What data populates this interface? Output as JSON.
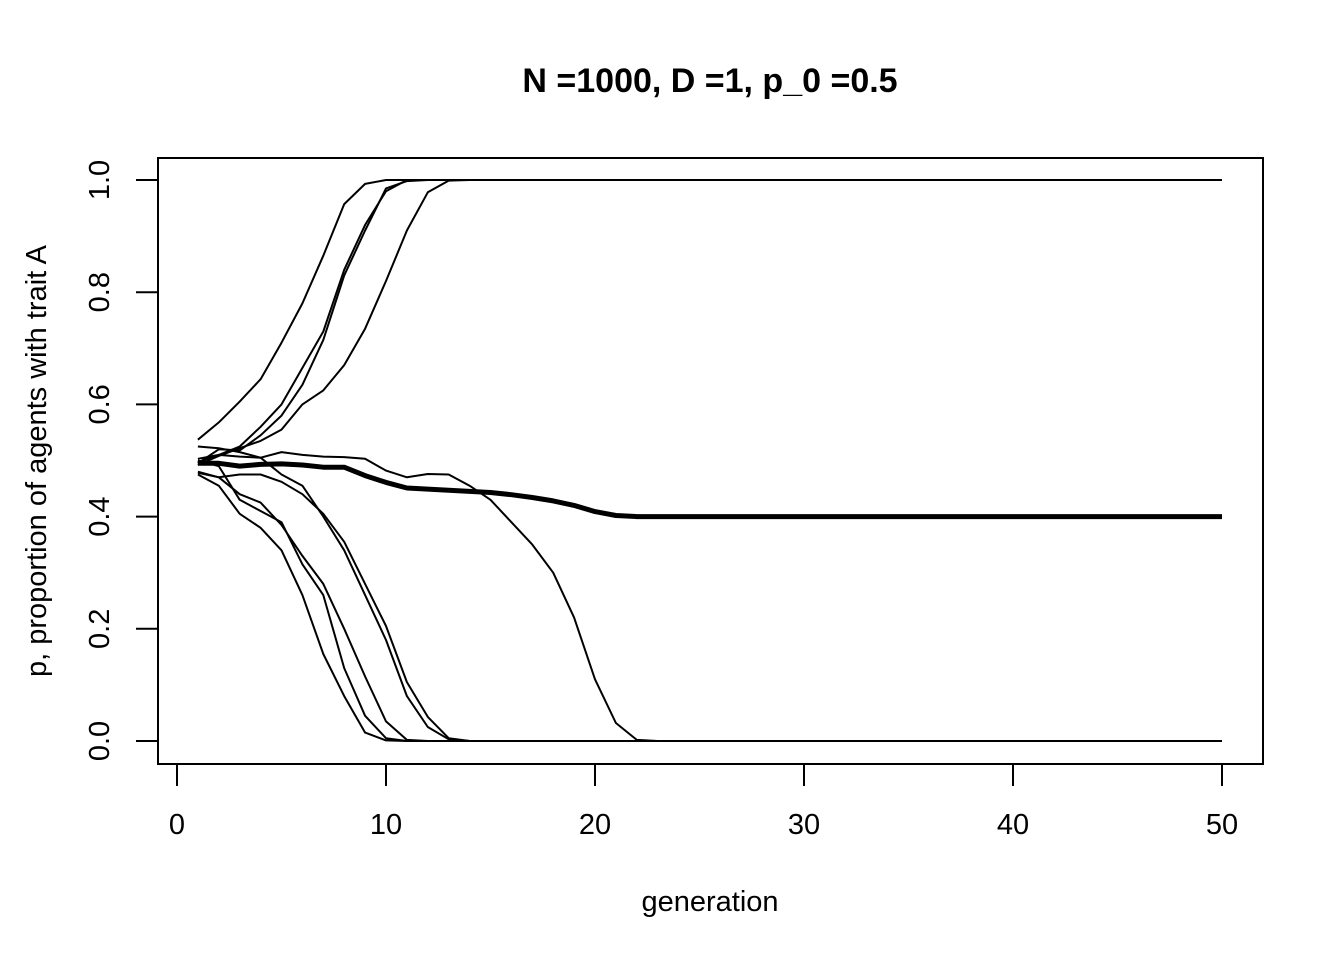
{
  "chart_data": {
    "type": "line",
    "title": "N =1000, D =1, p_0 =0.5",
    "xlabel": "generation",
    "ylabel": "p, proportion of agents with trait A",
    "xlim": [
      0,
      50
    ],
    "ylim": [
      0,
      1
    ],
    "x_ticks": [
      "0",
      "10",
      "20",
      "30",
      "40",
      "50"
    ],
    "y_ticks": [
      "0.0",
      "0.2",
      "0.4",
      "0.6",
      "0.8",
      "1.0"
    ],
    "grid": false,
    "line_color": "#000000",
    "x": [
      1,
      2,
      3,
      4,
      5,
      6,
      7,
      8,
      9,
      10,
      11,
      12,
      13,
      14,
      15,
      16,
      17,
      18,
      19,
      20,
      21,
      22,
      23,
      24,
      25,
      26,
      27,
      28,
      29,
      30,
      31,
      32,
      33,
      34,
      35,
      36,
      37,
      38,
      39,
      40,
      41,
      42,
      43,
      44,
      45,
      46,
      47,
      48,
      49,
      50
    ],
    "runs": [
      [
        0.537,
        0.568,
        0.605,
        0.645,
        0.71,
        0.78,
        0.865,
        0.957,
        0.993,
        1.0,
        1.0,
        1.0,
        1.0,
        1.0,
        1.0,
        1.0,
        1.0,
        1.0,
        1.0,
        1.0,
        1.0,
        1.0,
        1.0,
        1.0,
        1.0,
        1.0,
        1.0,
        1.0,
        1.0,
        1.0,
        1.0,
        1.0,
        1.0,
        1.0,
        1.0,
        1.0,
        1.0,
        1.0,
        1.0,
        1.0,
        1.0,
        1.0,
        1.0,
        1.0,
        1.0,
        1.0,
        1.0,
        1.0,
        1.0,
        1.0
      ],
      [
        0.497,
        0.51,
        0.525,
        0.56,
        0.6,
        0.665,
        0.73,
        0.84,
        0.92,
        0.98,
        1.0,
        1.0,
        1.0,
        1.0,
        1.0,
        1.0,
        1.0,
        1.0,
        1.0,
        1.0,
        1.0,
        1.0,
        1.0,
        1.0,
        1.0,
        1.0,
        1.0,
        1.0,
        1.0,
        1.0,
        1.0,
        1.0,
        1.0,
        1.0,
        1.0,
        1.0,
        1.0,
        1.0,
        1.0,
        1.0,
        1.0,
        1.0,
        1.0,
        1.0,
        1.0,
        1.0,
        1.0,
        1.0,
        1.0,
        1.0
      ],
      [
        0.495,
        0.52,
        0.518,
        0.545,
        0.58,
        0.635,
        0.715,
        0.83,
        0.91,
        0.985,
        0.998,
        1.0,
        1.0,
        1.0,
        1.0,
        1.0,
        1.0,
        1.0,
        1.0,
        1.0,
        1.0,
        1.0,
        1.0,
        1.0,
        1.0,
        1.0,
        1.0,
        1.0,
        1.0,
        1.0,
        1.0,
        1.0,
        1.0,
        1.0,
        1.0,
        1.0,
        1.0,
        1.0,
        1.0,
        1.0,
        1.0,
        1.0,
        1.0,
        1.0,
        1.0,
        1.0,
        1.0,
        1.0,
        1.0,
        1.0
      ],
      [
        0.492,
        0.508,
        0.522,
        0.535,
        0.555,
        0.6,
        0.625,
        0.67,
        0.735,
        0.82,
        0.91,
        0.978,
        0.999,
        1.0,
        1.0,
        1.0,
        1.0,
        1.0,
        1.0,
        1.0,
        1.0,
        1.0,
        1.0,
        1.0,
        1.0,
        1.0,
        1.0,
        1.0,
        1.0,
        1.0,
        1.0,
        1.0,
        1.0,
        1.0,
        1.0,
        1.0,
        1.0,
        1.0,
        1.0,
        1.0,
        1.0,
        1.0,
        1.0,
        1.0,
        1.0,
        1.0,
        1.0,
        1.0,
        1.0,
        1.0
      ],
      [
        0.503,
        0.51,
        0.507,
        0.505,
        0.515,
        0.51,
        0.507,
        0.506,
        0.503,
        0.482,
        0.47,
        0.476,
        0.475,
        0.455,
        0.43,
        0.39,
        0.35,
        0.3,
        0.22,
        0.11,
        0.032,
        0.002,
        0.0,
        0.0,
        0.0,
        0.0,
        0.0,
        0.0,
        0.0,
        0.0,
        0.0,
        0.0,
        0.0,
        0.0,
        0.0,
        0.0,
        0.0,
        0.0,
        0.0,
        0.0,
        0.0,
        0.0,
        0.0,
        0.0,
        0.0,
        0.0,
        0.0,
        0.0,
        0.0,
        0.0
      ],
      [
        0.525,
        0.522,
        0.515,
        0.505,
        0.475,
        0.455,
        0.4,
        0.34,
        0.26,
        0.18,
        0.08,
        0.025,
        0.003,
        0.0,
        0.0,
        0.0,
        0.0,
        0.0,
        0.0,
        0.0,
        0.0,
        0.0,
        0.0,
        0.0,
        0.0,
        0.0,
        0.0,
        0.0,
        0.0,
        0.0,
        0.0,
        0.0,
        0.0,
        0.0,
        0.0,
        0.0,
        0.0,
        0.0,
        0.0,
        0.0,
        0.0,
        0.0,
        0.0,
        0.0,
        0.0,
        0.0,
        0.0,
        0.0,
        0.0,
        0.0
      ],
      [
        0.48,
        0.47,
        0.475,
        0.475,
        0.462,
        0.44,
        0.405,
        0.355,
        0.28,
        0.205,
        0.105,
        0.043,
        0.005,
        0.0,
        0.0,
        0.0,
        0.0,
        0.0,
        0.0,
        0.0,
        0.0,
        0.0,
        0.0,
        0.0,
        0.0,
        0.0,
        0.0,
        0.0,
        0.0,
        0.0,
        0.0,
        0.0,
        0.0,
        0.0,
        0.0,
        0.0,
        0.0,
        0.0,
        0.0,
        0.0,
        0.0,
        0.0,
        0.0,
        0.0,
        0.0,
        0.0,
        0.0,
        0.0,
        0.0,
        0.0
      ],
      [
        0.478,
        0.47,
        0.44,
        0.425,
        0.385,
        0.33,
        0.28,
        0.2,
        0.115,
        0.035,
        0.002,
        0.0,
        0.0,
        0.0,
        0.0,
        0.0,
        0.0,
        0.0,
        0.0,
        0.0,
        0.0,
        0.0,
        0.0,
        0.0,
        0.0,
        0.0,
        0.0,
        0.0,
        0.0,
        0.0,
        0.0,
        0.0,
        0.0,
        0.0,
        0.0,
        0.0,
        0.0,
        0.0,
        0.0,
        0.0,
        0.0,
        0.0,
        0.0,
        0.0,
        0.0,
        0.0,
        0.0,
        0.0,
        0.0,
        0.0
      ],
      [
        0.475,
        0.455,
        0.405,
        0.38,
        0.34,
        0.26,
        0.155,
        0.08,
        0.015,
        0.001,
        0.0,
        0.0,
        0.0,
        0.0,
        0.0,
        0.0,
        0.0,
        0.0,
        0.0,
        0.0,
        0.0,
        0.0,
        0.0,
        0.0,
        0.0,
        0.0,
        0.0,
        0.0,
        0.0,
        0.0,
        0.0,
        0.0,
        0.0,
        0.0,
        0.0,
        0.0,
        0.0,
        0.0,
        0.0,
        0.0,
        0.0,
        0.0,
        0.0,
        0.0,
        0.0,
        0.0,
        0.0,
        0.0,
        0.0,
        0.0
      ],
      [
        0.5,
        0.49,
        0.43,
        0.41,
        0.39,
        0.315,
        0.26,
        0.13,
        0.045,
        0.005,
        0.0,
        0.0,
        0.0,
        0.0,
        0.0,
        0.0,
        0.0,
        0.0,
        0.0,
        0.0,
        0.0,
        0.0,
        0.0,
        0.0,
        0.0,
        0.0,
        0.0,
        0.0,
        0.0,
        0.0,
        0.0,
        0.0,
        0.0,
        0.0,
        0.0,
        0.0,
        0.0,
        0.0,
        0.0,
        0.0,
        0.0,
        0.0,
        0.0,
        0.0,
        0.0,
        0.0,
        0.0,
        0.0,
        0.0,
        0.0
      ]
    ],
    "mean": [
      0.495,
      0.495,
      0.49,
      0.493,
      0.494,
      0.492,
      0.488,
      0.488,
      0.473,
      0.461,
      0.451,
      0.449,
      0.447,
      0.445,
      0.443,
      0.439,
      0.434,
      0.428,
      0.42,
      0.409,
      0.402,
      0.4,
      0.4,
      0.4,
      0.4,
      0.4,
      0.4,
      0.4,
      0.4,
      0.4,
      0.4,
      0.4,
      0.4,
      0.4,
      0.4,
      0.4,
      0.4,
      0.4,
      0.4,
      0.4,
      0.4,
      0.4,
      0.4,
      0.4,
      0.4,
      0.4,
      0.4,
      0.4,
      0.4,
      0.4
    ]
  }
}
